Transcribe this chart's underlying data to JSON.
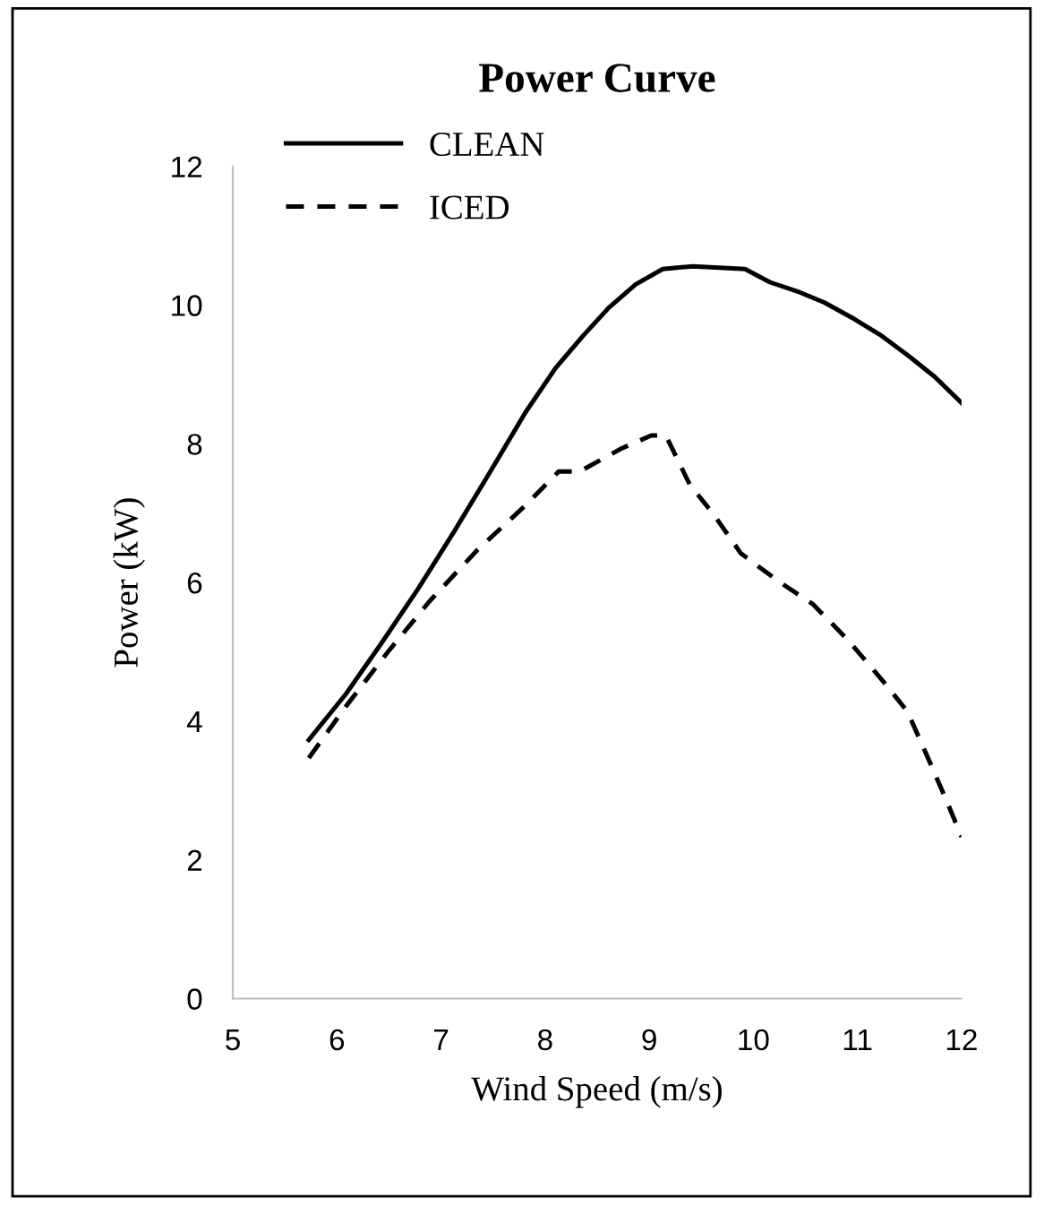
{
  "chart_data": {
    "type": "line",
    "title": "Power Curve",
    "xlabel": "Wind Speed (m/s)",
    "ylabel": "Power (kW)",
    "xlim": [
      5,
      12
    ],
    "xticks": [
      5,
      6,
      7,
      8,
      9,
      10,
      11,
      12
    ],
    "ylim": [
      0,
      12
    ],
    "yticks": [
      0,
      2,
      4,
      6,
      8,
      10,
      12
    ],
    "grid": false,
    "legend": "top left",
    "marker": "none",
    "series": [
      {
        "name": "CLEAN",
        "color": "#000000",
        "line_style": "solid",
        "x": [
          5.73,
          6.09,
          6.43,
          6.78,
          7.12,
          7.47,
          7.81,
          8.1,
          8.36,
          8.61,
          8.87,
          9.13,
          9.42,
          9.92,
          10.16,
          10.42,
          10.68,
          10.97,
          11.22,
          11.48,
          11.74,
          12.0
        ],
        "values": [
          3.73,
          4.4,
          5.13,
          5.91,
          6.72,
          7.59,
          8.45,
          9.09,
          9.55,
          9.96,
          10.3,
          10.52,
          10.56,
          10.52,
          10.33,
          10.2,
          10.04,
          9.8,
          9.57,
          9.28,
          8.97,
          8.59
        ]
      },
      {
        "name": "ICED",
        "color": "#000000",
        "line_style": "dashed",
        "x": [
          5.73,
          6.09,
          6.49,
          6.89,
          7.35,
          7.81,
          8.13,
          8.33,
          8.73,
          9.02,
          9.16,
          9.39,
          9.62,
          9.88,
          10.23,
          10.57,
          10.91,
          11.25,
          11.48,
          11.71,
          11.86,
          12.0
        ],
        "values": [
          3.47,
          4.22,
          5.0,
          5.73,
          6.47,
          7.11,
          7.6,
          7.6,
          7.93,
          8.12,
          8.12,
          7.41,
          6.98,
          6.42,
          6.03,
          5.69,
          5.17,
          4.57,
          4.14,
          3.36,
          2.84,
          2.33
        ]
      }
    ]
  }
}
